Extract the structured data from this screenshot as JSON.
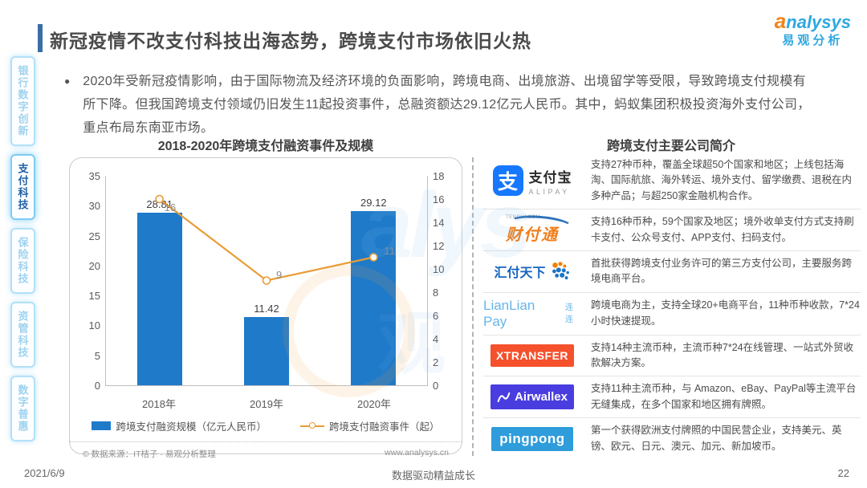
{
  "header": {
    "title": "新冠疫情不改支付科技出海态势，跨境支付市场依旧火热",
    "logo_en": "analysys",
    "logo_cn": "易观分析"
  },
  "sidebar": {
    "items": [
      {
        "label": "银行数字创新",
        "active": false
      },
      {
        "label": "支付科技",
        "active": true
      },
      {
        "label": "保险科技",
        "active": false
      },
      {
        "label": "资管科技",
        "active": false
      },
      {
        "label": "数字普惠",
        "active": false
      }
    ]
  },
  "intro": {
    "bullet": "●",
    "text": "2020年受新冠疫情影响，由于国际物流及经济环境的负面影响，跨境电商、出境旅游、出境留学等受限，导致跨境支付规模有所下降。但我国跨境支付领域仍旧发生11起投资事件，总融资额达29.12亿元人民币。其中，蚂蚁集团积极投资海外支付公司，重点布局东南亚市场。"
  },
  "chart_data": {
    "type": "bar",
    "combo": "bar+line",
    "title": "2018-2020年跨境支付融资事件及规模",
    "categories": [
      "2018年",
      "2019年",
      "2020年"
    ],
    "series": [
      {
        "name": "跨境支付融资规模（亿元人民币）",
        "chart_type": "bar",
        "axis": "left",
        "color": "#1f7ac9",
        "values": [
          28.81,
          11.42,
          29.12
        ]
      },
      {
        "name": "跨境支付融资事件（起）",
        "chart_type": "line",
        "axis": "right",
        "color": "#e89c35",
        "values": [
          16,
          9,
          11
        ]
      }
    ],
    "left_axis": {
      "min": 0,
      "max": 35,
      "step": 5
    },
    "right_axis": {
      "min": 0,
      "max": 18,
      "step": 2
    },
    "left_ticks": [
      35,
      30,
      25,
      20,
      15,
      10,
      5,
      0
    ],
    "right_ticks": [
      18,
      16,
      14,
      12,
      10,
      8,
      6,
      4,
      2,
      0
    ],
    "legend_position": "bottom",
    "grid": false,
    "source_note": "© 数据来源：IT桔子 · 易观分析整理",
    "source_url": "www.analysys.cn"
  },
  "companies": {
    "title": "跨境支付主要公司简介",
    "rows": [
      {
        "name": "支付宝",
        "logo_glyph": "支",
        "logo_cn": "支付宝",
        "logo_sub": "ALIPAY",
        "desc": "支持27种币种，覆盖全球超50个国家和地区；上线包括海淘、国际航旅、海外转运、境外支付、留学缴费、退税在内多种产品；与超250家金融机构合作。"
      },
      {
        "name": "财付通",
        "logo_text": "财付通",
        "logo_sub": "TENPAY.COM",
        "desc": "支持16种币种，59个国家及地区；境外收单支付方式支持刷卡支付、公众号支付、APP支付、扫码支付。"
      },
      {
        "name": "汇付天下",
        "logo_text": "汇付天下",
        "desc": "首批获得跨境支付业务许可的第三方支付公司，主要服务跨境电商平台。"
      },
      {
        "name": "连连支付",
        "logo_text": "LianLian Pay",
        "logo_sub": "连连",
        "desc": "跨境电商为主，支持全球20+电商平台，11种币种收款，7*24 小时快速提现。"
      },
      {
        "name": "XTransfer",
        "logo_text": "XTRANSFER",
        "desc": "支持14种主流币种，主流币种7*24在线管理、一站式外贸收款解决方案。"
      },
      {
        "name": "Airwallex",
        "logo_text": "Airwallex",
        "desc": "支持11种主流币种，与 Amazon、eBay、PayPal等主流平台无缝集成，在多个国家和地区拥有牌照。"
      },
      {
        "name": "PingPong",
        "logo_text": "pingpong",
        "desc": "第一个获得欧洲支付牌照的中国民营企业，支持美元、英镑、欧元、日元、澳元、加元、新加坡币。"
      }
    ]
  },
  "footer": {
    "date": "2021/6/9",
    "slogan": "数据驱动精益成长",
    "page": "22"
  },
  "colors": {
    "bar_blue": "#1f7ac9",
    "line_orange": "#e89c35",
    "accent_blue": "#3a6ea5",
    "sidebar_inactive": "#9fd2ef",
    "sidebar_active": "#1e5fa8",
    "brand_orange": "#f08519",
    "brand_blue": "#2fa8e1"
  }
}
